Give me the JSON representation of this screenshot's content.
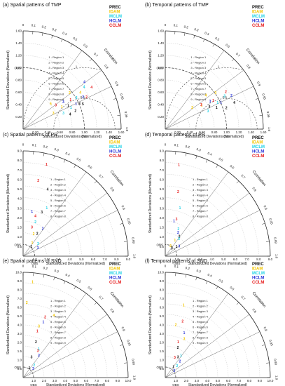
{
  "figure": {
    "shared_labels": {
      "xlabel": "Standardized Deviations (Normalized)",
      "ylabel": "Standardized Deviations (Normalized)",
      "arc_label": "Correlation",
      "obs_label": "OBS"
    },
    "correlation_ticks": [
      "0",
      "0.1",
      "0.2",
      "0.3",
      "0.4",
      "0.5",
      "0.6",
      "0.7",
      "0.8",
      "0.9",
      "0.95",
      "0.99",
      "1.0"
    ],
    "correlation_tick_values": [
      0,
      0.1,
      0.2,
      0.3,
      0.4,
      0.5,
      0.6,
      0.7,
      0.8,
      0.9,
      0.95,
      0.99,
      1.0
    ],
    "legend": [
      {
        "name": "PREC",
        "color": "#111111"
      },
      {
        "name": "IDAM",
        "color": "#f2c500"
      },
      {
        "name": "MCLM",
        "color": "#21d2e6"
      },
      {
        "name": "HCLM",
        "color": "#2a35d8"
      },
      {
        "name": "CCLM",
        "color": "#e61a1a"
      }
    ]
  },
  "chart_data": [
    {
      "type": "scatter",
      "title": "(a) Spatial patterns of TMP",
      "radial_max": 1.6,
      "ticks": [
        "0.20",
        "0.40",
        "0.60",
        "0.80",
        "1.00",
        "1.20",
        "1.40",
        "1.60"
      ],
      "tick_values": [
        0.2,
        0.4,
        0.6,
        0.8,
        1.0,
        1.2,
        1.4,
        1.6
      ],
      "ytick_labels": [
        "0.20",
        "0.40",
        "0.60",
        "0.80",
        "1.00",
        "1.20",
        "1.40",
        "1.60"
      ],
      "ref_std": 1.0,
      "rms_circles": [
        0.5,
        1.0
      ],
      "rms_labels": [
        "0.5",
        "1"
      ],
      "region_labels": [
        "1 - Region 1",
        "2 - Region 2",
        "3 - Region 3",
        "4 - Region 4",
        "5 - Region 5",
        "6 - Region 6",
        "7 - Region 7",
        "8 - Region 8",
        "9 - Region 9"
      ],
      "series": [
        {
          "name": "PREC",
          "points": [
            {
              "std": 0.82,
              "corr": 0.9,
              "label": "1"
            },
            {
              "std": 0.9,
              "corr": 0.95,
              "label": "2"
            },
            {
              "std": 1.0,
              "corr": 0.92,
              "label": "3"
            },
            {
              "std": 0.8,
              "corr": 0.96,
              "label": "4"
            },
            {
              "std": 1.05,
              "corr": 0.93,
              "label": "5"
            }
          ]
        },
        {
          "name": "IDAM",
          "points": [
            {
              "std": 0.72,
              "corr": 0.88,
              "label": "1"
            },
            {
              "std": 0.95,
              "corr": 0.8,
              "label": "2"
            },
            {
              "std": 0.55,
              "corr": 0.9,
              "label": "3"
            },
            {
              "std": 1.1,
              "corr": 0.85,
              "label": "4"
            },
            {
              "std": 0.6,
              "corr": 0.75,
              "label": "5"
            }
          ]
        },
        {
          "name": "MCLM",
          "points": [
            {
              "std": 0.85,
              "corr": 0.92,
              "label": "1"
            },
            {
              "std": 1.0,
              "corr": 0.87,
              "label": "2"
            },
            {
              "std": 0.7,
              "corr": 0.94,
              "label": "3"
            },
            {
              "std": 1.2,
              "corr": 0.83,
              "label": "4"
            }
          ]
        },
        {
          "name": "HCLM",
          "points": [
            {
              "std": 0.95,
              "corr": 0.91,
              "label": "1"
            },
            {
              "std": 1.1,
              "corr": 0.89,
              "label": "2"
            },
            {
              "std": 0.78,
              "corr": 0.84,
              "label": "3"
            },
            {
              "std": 1.25,
              "corr": 0.8,
              "label": "4"
            }
          ]
        },
        {
          "name": "CCLM",
          "points": [
            {
              "std": 0.9,
              "corr": 0.86,
              "label": "1"
            },
            {
              "std": 1.15,
              "corr": 0.9,
              "label": "2"
            },
            {
              "std": 0.65,
              "corr": 0.82,
              "label": "3"
            },
            {
              "std": 1.3,
              "corr": 0.86,
              "label": "4"
            }
          ]
        }
      ]
    },
    {
      "type": "scatter",
      "title": "(b) Temporal patterns of TMP",
      "radial_max": 1.6,
      "ticks": [
        "0.20",
        "0.40",
        "0.60",
        "0.80",
        "1.00",
        "1.20",
        "1.40",
        "1.60"
      ],
      "tick_values": [
        0.2,
        0.4,
        0.6,
        0.8,
        1.0,
        1.2,
        1.4,
        1.6
      ],
      "ytick_labels": [
        "0.20",
        "0.40",
        "0.60",
        "0.80",
        "1.00",
        "1.20",
        "1.40",
        "1.60"
      ],
      "ref_std": 1.0,
      "rms_circles": [
        0.5,
        1.0
      ],
      "rms_labels": [
        "0.5",
        "1"
      ],
      "region_labels": [
        "1 - Region 1",
        "2 - Region 2",
        "3 - Region 3",
        "4 - Region 4",
        "5 - Region 5",
        "6 - Region 6",
        "7 - Region 7",
        "8 - Region 8",
        "9 - Region 9"
      ],
      "series": [
        {
          "name": "PREC",
          "points": [
            {
              "std": 0.9,
              "corr": 0.93,
              "label": "1"
            },
            {
              "std": 1.05,
              "corr": 0.95,
              "label": "2"
            },
            {
              "std": 0.8,
              "corr": 0.9,
              "label": "3"
            },
            {
              "std": 1.2,
              "corr": 0.94,
              "label": "4"
            }
          ]
        },
        {
          "name": "IDAM",
          "points": [
            {
              "std": 0.7,
              "corr": 0.85,
              "label": "1"
            },
            {
              "std": 0.55,
              "corr": 0.8,
              "label": "2"
            },
            {
              "std": 1.0,
              "corr": 0.82,
              "label": "3"
            },
            {
              "std": 0.85,
              "corr": 0.78,
              "label": "4"
            }
          ]
        },
        {
          "name": "MCLM",
          "points": [
            {
              "std": 0.95,
              "corr": 0.9,
              "label": "1"
            },
            {
              "std": 1.1,
              "corr": 0.88,
              "label": "2"
            },
            {
              "std": 0.75,
              "corr": 0.93,
              "label": "3"
            }
          ]
        },
        {
          "name": "HCLM",
          "points": [
            {
              "std": 1.0,
              "corr": 0.91,
              "label": "1"
            },
            {
              "std": 1.2,
              "corr": 0.9,
              "label": "2"
            },
            {
              "std": 0.85,
              "corr": 0.86,
              "label": "3"
            }
          ]
        },
        {
          "name": "CCLM",
          "points": [
            {
              "std": 0.9,
              "corr": 0.87,
              "label": "1"
            },
            {
              "std": 1.15,
              "corr": 0.86,
              "label": "2"
            },
            {
              "std": 0.7,
              "corr": 0.84,
              "label": "3"
            }
          ]
        }
      ]
    },
    {
      "type": "scatter",
      "title": "(c) Spatial patterns of PR",
      "radial_max": 9.0,
      "ticks": [
        "1.0",
        "2.0",
        "3.0",
        "4.0",
        "5.0",
        "6.0",
        "7.0",
        "8.0",
        "9.0"
      ],
      "tick_values": [
        1,
        2,
        3,
        4,
        5,
        6,
        7,
        8,
        9
      ],
      "ytick_labels": [
        "0.5",
        "1.0",
        "1.5",
        "2.0",
        "3.0",
        "4.0",
        "5.0",
        "6.0",
        "7.0",
        "8.0",
        "9.0"
      ],
      "ref_std": 1.0,
      "rms_circles": [],
      "rms_labels": [],
      "region_labels": [
        "1 - Region 1",
        "2 - Region 2",
        "3 - Region 3",
        "4 - Region 4",
        "5 - Region 5",
        "6 - Region 6",
        "7 - Region 7",
        "8 - Region 8"
      ],
      "series": [
        {
          "name": "PREC",
          "points": [
            {
              "std": 1.0,
              "corr": 0.7,
              "label": "1"
            },
            {
              "std": 2.2,
              "corr": 0.55,
              "label": "2"
            },
            {
              "std": 4.0,
              "corr": 0.4,
              "label": "3"
            },
            {
              "std": 6.0,
              "corr": 0.35,
              "label": "4"
            }
          ]
        },
        {
          "name": "IDAM",
          "points": [
            {
              "std": 1.3,
              "corr": 0.6,
              "label": "1"
            },
            {
              "std": 2.0,
              "corr": 0.45,
              "label": "2"
            }
          ]
        },
        {
          "name": "MCLM",
          "points": [
            {
              "std": 4.5,
              "corr": 0.45,
              "label": "1"
            },
            {
              "std": 3.0,
              "corr": 0.35,
              "label": "2"
            },
            {
              "std": 1.6,
              "corr": 0.8,
              "label": "3"
            }
          ]
        },
        {
          "name": "HCLM",
          "points": [
            {
              "std": 3.8,
              "corr": 0.2,
              "label": "1"
            },
            {
              "std": 2.8,
              "corr": 0.6,
              "label": "2"
            },
            {
              "std": 1.4,
              "corr": 0.9,
              "label": "3"
            }
          ]
        },
        {
          "name": "CCLM",
          "points": [
            {
              "std": 8.0,
              "corr": 0.25,
              "label": "1"
            },
            {
              "std": 6.5,
              "corr": 0.2,
              "label": "2"
            },
            {
              "std": 2.5,
              "corr": 0.3,
              "label": "3"
            },
            {
              "std": 3.5,
              "corr": 0.3,
              "label": "4"
            }
          ]
        }
      ]
    },
    {
      "type": "scatter",
      "title": "(d) Temporal patterns of PR",
      "radial_max": 9.0,
      "ticks": [
        "1.0",
        "2.0",
        "3.0",
        "4.0",
        "5.0",
        "6.0",
        "7.0",
        "8.0",
        "9.0"
      ],
      "tick_values": [
        1,
        2,
        3,
        4,
        5,
        6,
        7,
        8,
        9
      ],
      "ytick_labels": [
        "0.5",
        "1.0",
        "1.5",
        "2.0",
        "3.0",
        "4.0",
        "5.0",
        "6.0",
        "7.0",
        "8.0",
        "9.0"
      ],
      "ref_std": 1.0,
      "rms_circles": [],
      "rms_labels": [],
      "region_labels": [
        "1 - Region 1",
        "2 - Region 2",
        "3 - Region 3",
        "4 - Region 4",
        "5 - Region 5",
        "6 - Region 6",
        "7 - Region 7",
        "8 - Region 8"
      ],
      "series": [
        {
          "name": "PREC",
          "points": [
            {
              "std": 1.2,
              "corr": 0.8,
              "label": "1"
            },
            {
              "std": 2.0,
              "corr": 0.6,
              "label": "2"
            },
            {
              "std": 0.8,
              "corr": 0.7,
              "label": "3"
            }
          ]
        },
        {
          "name": "IDAM",
          "points": [
            {
              "std": 1.5,
              "corr": 0.55,
              "label": "1"
            },
            {
              "std": 0.9,
              "corr": 0.5,
              "label": "2"
            }
          ]
        },
        {
          "name": "MCLM",
          "points": [
            {
              "std": 4.2,
              "corr": 0.3,
              "label": "1"
            },
            {
              "std": 2.5,
              "corr": 0.45,
              "label": "2"
            },
            {
              "std": 1.8,
              "corr": 0.65,
              "label": "3"
            }
          ]
        },
        {
          "name": "HCLM",
          "points": [
            {
              "std": 3.0,
              "corr": 0.25,
              "label": "1"
            },
            {
              "std": 2.2,
              "corr": 0.5,
              "label": "2"
            },
            {
              "std": 1.4,
              "corr": 0.85,
              "label": "3"
            }
          ]
        },
        {
          "name": "CCLM",
          "points": [
            {
              "std": 7.8,
              "corr": 0.15,
              "label": "1"
            },
            {
              "std": 5.5,
              "corr": 0.2,
              "label": "2"
            },
            {
              "std": 3.2,
              "corr": 0.3,
              "label": "3"
            }
          ]
        }
      ]
    },
    {
      "type": "scatter",
      "title": "(e) Spatial patterns of SND",
      "radial_max": 10.0,
      "ticks": [
        "1.0",
        "2.0",
        "3.0",
        "4.0",
        "5.0",
        "6.0",
        "7.0",
        "8.0",
        "9.0",
        "10.0"
      ],
      "tick_values": [
        1,
        2,
        3,
        4,
        5,
        6,
        7,
        8,
        9,
        10
      ],
      "ytick_labels": [
        "0.5",
        "1.0",
        "1.5",
        "2.0",
        "3.0",
        "4.0",
        "5.0",
        "6.0",
        "7.0",
        "8.0",
        "9.0",
        "10.0"
      ],
      "ref_std": 1.0,
      "rms_circles": [],
      "rms_labels": [],
      "region_labels": [
        "1 - Region 1",
        "2 - Region 2",
        "3 - Region 3",
        "4 - Region 4",
        "5 - Region 5",
        "6 - Region 6",
        "7 - Region 7",
        "8 - Region 8",
        "9 - Region 9"
      ],
      "series": [
        {
          "name": "PREC",
          "points": [
            {
              "std": 1.0,
              "corr": 0.6,
              "label": "1"
            },
            {
              "std": 3.5,
              "corr": 0.35,
              "label": "2"
            },
            {
              "std": 2.0,
              "corr": 0.4,
              "label": "3"
            }
          ]
        },
        {
          "name": "IDAM",
          "points": [
            {
              "std": 9.0,
              "corr": 0.1,
              "label": "1"
            },
            {
              "std": 7.0,
              "corr": 0.05,
              "label": "2"
            },
            {
              "std": 5.0,
              "corr": 0.3,
              "label": "3"
            },
            {
              "std": 6.5,
              "corr": 0.45,
              "label": "4"
            }
          ]
        },
        {
          "name": "MCLM",
          "points": [
            {
              "std": 3.0,
              "corr": 0.5,
              "label": "1"
            },
            {
              "std": 1.5,
              "corr": 0.7,
              "label": "2"
            }
          ]
        },
        {
          "name": "HCLM",
          "points": [
            {
              "std": 5.5,
              "corr": 0.35,
              "label": "1"
            },
            {
              "std": 2.5,
              "corr": 0.6,
              "label": "2"
            },
            {
              "std": 1.2,
              "corr": 0.8,
              "label": "3"
            }
          ]
        },
        {
          "name": "CCLM",
          "points": [
            {
              "std": 4.5,
              "corr": 0.3,
              "label": "1"
            },
            {
              "std": 6.0,
              "corr": 0.35,
              "label": "2"
            },
            {
              "std": 2.8,
              "corr": 0.5,
              "label": "3"
            }
          ]
        }
      ]
    },
    {
      "type": "scatter",
      "title": "(f) Temporal patterns of SND",
      "radial_max": 10.0,
      "ticks": [
        "1.0",
        "2.0",
        "3.0",
        "4.0",
        "5.0",
        "6.0",
        "7.0",
        "8.0",
        "9.0",
        "10.0"
      ],
      "tick_values": [
        1,
        2,
        3,
        4,
        5,
        6,
        7,
        8,
        9,
        10
      ],
      "ytick_labels": [
        "0.5",
        "1.0",
        "1.5",
        "2.0",
        "3.0",
        "4.0",
        "5.0",
        "6.0",
        "7.0",
        "8.0",
        "9.0",
        "10.0"
      ],
      "ref_std": 1.0,
      "rms_circles": [],
      "rms_labels": [],
      "region_labels": [
        "1 - Region 1",
        "2 - Region 2",
        "3 - Region 3",
        "4 - Region 4",
        "5 - Region 5",
        "6 - Region 6",
        "7 - Region 7",
        "8 - Region 8",
        "9 - Region 9"
      ],
      "series": [
        {
          "name": "PREC",
          "points": [
            {
              "std": 1.2,
              "corr": 0.65,
              "label": "1"
            },
            {
              "std": 3.0,
              "corr": 0.4,
              "label": "2"
            },
            {
              "std": 2.2,
              "corr": 0.55,
              "label": "3"
            }
          ]
        },
        {
          "name": "IDAM",
          "points": [
            {
              "std": 7.0,
              "corr": 0.25,
              "label": "1"
            },
            {
              "std": 5.0,
              "corr": 0.2,
              "label": "2"
            },
            {
              "std": 4.0,
              "corr": 0.45,
              "label": "3"
            }
          ]
        },
        {
          "name": "MCLM",
          "points": [
            {
              "std": 2.5,
              "corr": 0.6,
              "label": "1"
            },
            {
              "std": 1.5,
              "corr": 0.75,
              "label": "2"
            }
          ]
        },
        {
          "name": "HCLM",
          "points": [
            {
              "std": 4.5,
              "corr": 0.4,
              "label": "1"
            },
            {
              "std": 2.0,
              "corr": 0.7,
              "label": "2"
            },
            {
              "std": 1.0,
              "corr": 0.85,
              "label": "3"
            }
          ]
        },
        {
          "name": "CCLM",
          "points": [
            {
              "std": 3.5,
              "corr": 0.35,
              "label": "1"
            },
            {
              "std": 5.5,
              "corr": 0.3,
              "label": "2"
            },
            {
              "std": 2.0,
              "corr": 0.45,
              "label": "3"
            }
          ]
        }
      ]
    }
  ]
}
